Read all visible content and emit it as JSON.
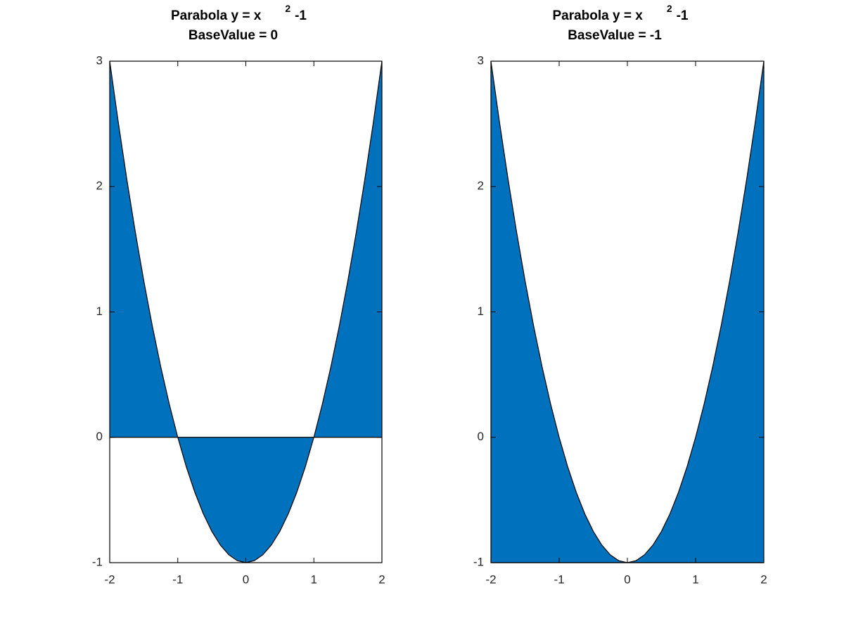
{
  "chart_data": [
    {
      "type": "area",
      "title": {
        "text": "Parabola y = x",
        "superscript": "2",
        "suffix": "-1"
      },
      "subtitle": "BaseValue = 0",
      "base_value": 0,
      "color": "#0072bd",
      "x": [
        -2,
        -1.875,
        -1.75,
        -1.625,
        -1.5,
        -1.375,
        -1.25,
        -1.125,
        -1,
        -0.875,
        -0.75,
        -0.625,
        -0.5,
        -0.375,
        -0.25,
        -0.125,
        0,
        0.125,
        0.25,
        0.375,
        0.5,
        0.625,
        0.75,
        0.875,
        1,
        1.125,
        1.25,
        1.375,
        1.5,
        1.625,
        1.75,
        1.875,
        2
      ],
      "values": [
        3,
        2.515625,
        2.0625,
        1.640625,
        1.25,
        0.890625,
        0.5625,
        0.265625,
        0,
        -0.234375,
        -0.4375,
        -0.609375,
        -0.75,
        -0.859375,
        -0.9375,
        -0.984375,
        -1,
        -0.984375,
        -0.9375,
        -0.859375,
        -0.75,
        -0.609375,
        -0.4375,
        -0.234375,
        0,
        0.265625,
        0.5625,
        0.890625,
        1.25,
        1.640625,
        2.0625,
        2.515625,
        3
      ],
      "xlim": [
        -2,
        2
      ],
      "xticks": [
        -2,
        -1,
        0,
        1,
        2
      ],
      "ylim": [
        -1,
        3
      ],
      "yticks": [
        -1,
        0,
        1,
        2,
        3
      ]
    },
    {
      "type": "area",
      "title": {
        "text": "Parabola y = x",
        "superscript": "2",
        "suffix": "-1"
      },
      "subtitle": "BaseValue = -1",
      "base_value": -1,
      "color": "#0072bd",
      "x": [
        -2,
        -1.875,
        -1.75,
        -1.625,
        -1.5,
        -1.375,
        -1.25,
        -1.125,
        -1,
        -0.875,
        -0.75,
        -0.625,
        -0.5,
        -0.375,
        -0.25,
        -0.125,
        0,
        0.125,
        0.25,
        0.375,
        0.5,
        0.625,
        0.75,
        0.875,
        1,
        1.125,
        1.25,
        1.375,
        1.5,
        1.625,
        1.75,
        1.875,
        2
      ],
      "values": [
        3,
        2.515625,
        2.0625,
        1.640625,
        1.25,
        0.890625,
        0.5625,
        0.265625,
        0,
        -0.234375,
        -0.4375,
        -0.609375,
        -0.75,
        -0.859375,
        -0.9375,
        -0.984375,
        -1,
        -0.984375,
        -0.9375,
        -0.859375,
        -0.75,
        -0.609375,
        -0.4375,
        -0.234375,
        0,
        0.265625,
        0.5625,
        0.890625,
        1.25,
        1.640625,
        2.0625,
        2.515625,
        3
      ],
      "xlim": [
        -2,
        2
      ],
      "xticks": [
        -2,
        -1,
        0,
        1,
        2
      ],
      "ylim": [
        -1,
        3
      ],
      "yticks": [
        -1,
        0,
        1,
        2,
        3
      ]
    }
  ]
}
